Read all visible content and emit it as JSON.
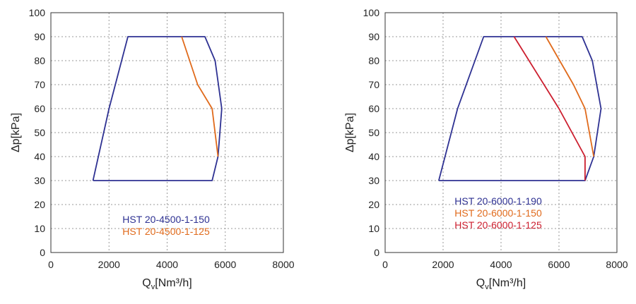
{
  "chart_data": [
    {
      "type": "line",
      "xlabel": "Qv[Nm³/h]",
      "xlabel_main": "Q",
      "xlabel_sub": "v",
      "xlabel_rest": "[Nm³/h]",
      "ylabel": "Δp[kPa]",
      "xlim": [
        0,
        8000
      ],
      "ylim": [
        0,
        100
      ],
      "xticks": [
        "0",
        "2000",
        "4000",
        "6000",
        "8000"
      ],
      "yticks": [
        "0",
        "10",
        "20",
        "30",
        "40",
        "50",
        "60",
        "70",
        "80",
        "90",
        "100"
      ],
      "grid": true,
      "legend_position": "bottom-center",
      "series": [
        {
          "name": "HST 20-4500-1-150",
          "color": "#2e3192",
          "points": [
            [
              1450,
              30
            ],
            [
              2000,
              60
            ],
            [
              2650,
              90
            ],
            [
              5300,
              90
            ],
            [
              5650,
              80
            ],
            [
              5880,
              60
            ],
            [
              5750,
              40
            ],
            [
              5550,
              30
            ],
            [
              1450,
              30
            ]
          ]
        },
        {
          "name": "HST 20-4500-1-125",
          "color": "#e06a1b",
          "points": [
            [
              4500,
              90
            ],
            [
              5050,
              70
            ],
            [
              5550,
              60
            ],
            [
              5750,
              40
            ]
          ]
        }
      ]
    },
    {
      "type": "line",
      "xlabel": "Qv[Nm³/h]",
      "xlabel_main": "Q",
      "xlabel_sub": "v",
      "xlabel_rest": "[Nm³/h]",
      "ylabel": "Δp[kPa]",
      "xlim": [
        0,
        8000
      ],
      "ylim": [
        0,
        100
      ],
      "xticks": [
        "0",
        "2000",
        "4000",
        "6000",
        "8000"
      ],
      "yticks": [
        "0",
        "10",
        "20",
        "30",
        "40",
        "50",
        "60",
        "70",
        "80",
        "90",
        "100"
      ],
      "grid": true,
      "legend_position": "bottom-center",
      "series": [
        {
          "name": "HST 20-6000-1-190",
          "color": "#2e3192",
          "points": [
            [
              1850,
              30
            ],
            [
              2500,
              60
            ],
            [
              3400,
              90
            ],
            [
              6800,
              90
            ],
            [
              7150,
              80
            ],
            [
              7450,
              60
            ],
            [
              7200,
              40
            ],
            [
              6900,
              30
            ],
            [
              1850,
              30
            ]
          ]
        },
        {
          "name": "HST 20-6000-1-150",
          "color": "#e06a1b",
          "points": [
            [
              5550,
              90
            ],
            [
              6500,
              70
            ],
            [
              6900,
              60
            ],
            [
              7200,
              40
            ]
          ]
        },
        {
          "name": "HST 20-6000-1-125",
          "color": "#cc1e2e",
          "points": [
            [
              4450,
              90
            ],
            [
              6000,
              60
            ],
            [
              6900,
              40
            ],
            [
              6900,
              30
            ]
          ]
        }
      ]
    }
  ]
}
